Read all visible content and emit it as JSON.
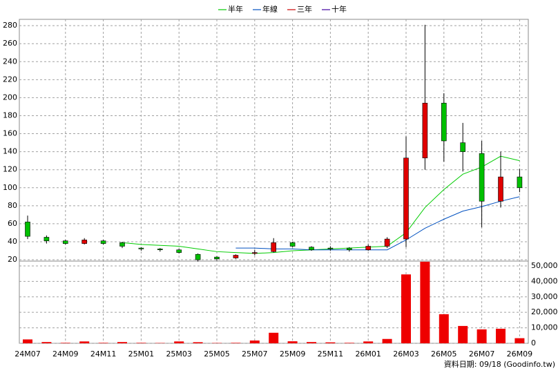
{
  "chart_data": {
    "type": "candlestick",
    "categories": [
      "24M07",
      null,
      "24M09",
      null,
      "24M11",
      null,
      "25M01",
      null,
      "25M03",
      null,
      "25M05",
      null,
      "25M07",
      null,
      "25M09",
      null,
      "25M11",
      null,
      "26M01",
      null,
      "26M03",
      null,
      "26M05",
      null,
      "26M07",
      null,
      "26M09"
    ],
    "open": [
      62,
      45,
      41,
      38,
      41,
      39,
      33,
      32,
      31,
      26,
      23,
      22,
      27,
      29,
      39,
      34,
      33,
      33,
      31,
      35,
      43,
      133,
      194,
      150,
      138,
      85,
      112
    ],
    "close": [
      46,
      41,
      38,
      42,
      38,
      35,
      32,
      31,
      28,
      20,
      21,
      25,
      28,
      39,
      35,
      31,
      32,
      31,
      35,
      43,
      133,
      194,
      152,
      140,
      85,
      112,
      100
    ],
    "high": [
      69,
      47,
      42,
      44,
      42,
      40,
      34,
      33,
      32,
      27,
      24,
      26,
      31,
      44,
      40,
      35,
      35,
      34,
      37,
      45,
      157,
      281,
      205,
      172,
      152,
      140,
      121
    ],
    "low": [
      43,
      38,
      37,
      37,
      37,
      33,
      30,
      29,
      27,
      18,
      19,
      21,
      25,
      28,
      34,
      30,
      30,
      29,
      30,
      33,
      34,
      120,
      129,
      118,
      56,
      78,
      95
    ],
    "up_color": "#e00000",
    "down_color": "#00c000",
    "ylim": [
      18.5,
      287
    ],
    "yticks": [
      20,
      40,
      60,
      80,
      100,
      120,
      140,
      160,
      180,
      200,
      220,
      240,
      260,
      280
    ],
    "grid": true,
    "series": [
      {
        "name": "半年",
        "color": "#00cc00",
        "values": [
          null,
          null,
          null,
          null,
          null,
          39,
          37,
          36,
          35,
          32,
          29,
          28,
          27,
          28,
          30,
          31,
          32,
          33,
          34,
          35,
          50,
          78,
          98,
          115,
          123,
          135,
          130
        ]
      },
      {
        "name": "年線",
        "color": "#0050c0",
        "values": [
          null,
          null,
          null,
          null,
          null,
          null,
          null,
          null,
          null,
          null,
          null,
          33,
          33,
          32,
          32,
          31,
          31,
          31,
          31,
          31,
          42,
          55,
          65,
          74,
          79,
          85,
          90
        ]
      },
      {
        "name": "三年",
        "color": "#cc0000",
        "values": [
          null,
          null,
          null,
          null,
          null,
          null,
          null,
          null,
          null,
          null,
          null,
          null,
          null,
          null,
          null,
          null,
          null,
          null,
          null,
          null,
          null,
          null,
          null,
          null,
          null,
          null,
          null
        ]
      },
      {
        "name": "十年",
        "color": "#4000a0",
        "values": [
          null,
          null,
          null,
          null,
          null,
          null,
          null,
          null,
          null,
          null,
          null,
          null,
          null,
          null,
          null,
          null,
          null,
          null,
          null,
          null,
          null,
          null,
          null,
          null,
          null,
          null,
          null
        ]
      }
    ],
    "volume": {
      "color": "#ee0000",
      "values": [
        2500,
        800,
        300,
        1200,
        300,
        800,
        300,
        200,
        1200,
        700,
        200,
        300,
        1800,
        6800,
        1300,
        800,
        600,
        300,
        1200,
        2800,
        44500,
        52700,
        18800,
        11200,
        9000,
        9400,
        3300
      ],
      "ylim": [
        0,
        53100
      ],
      "yticks": [
        0,
        {
          "value": 10000,
          "label": "10,000"
        },
        {
          "value": 20000,
          "label": "20,000"
        },
        {
          "value": 30000,
          "label": "30,000"
        },
        {
          "value": 40000,
          "label": "40,000"
        },
        {
          "value": 50000,
          "label": "50,000"
        }
      ]
    },
    "source_note": "資料日期: 09/18 (Goodinfo.tw)"
  }
}
